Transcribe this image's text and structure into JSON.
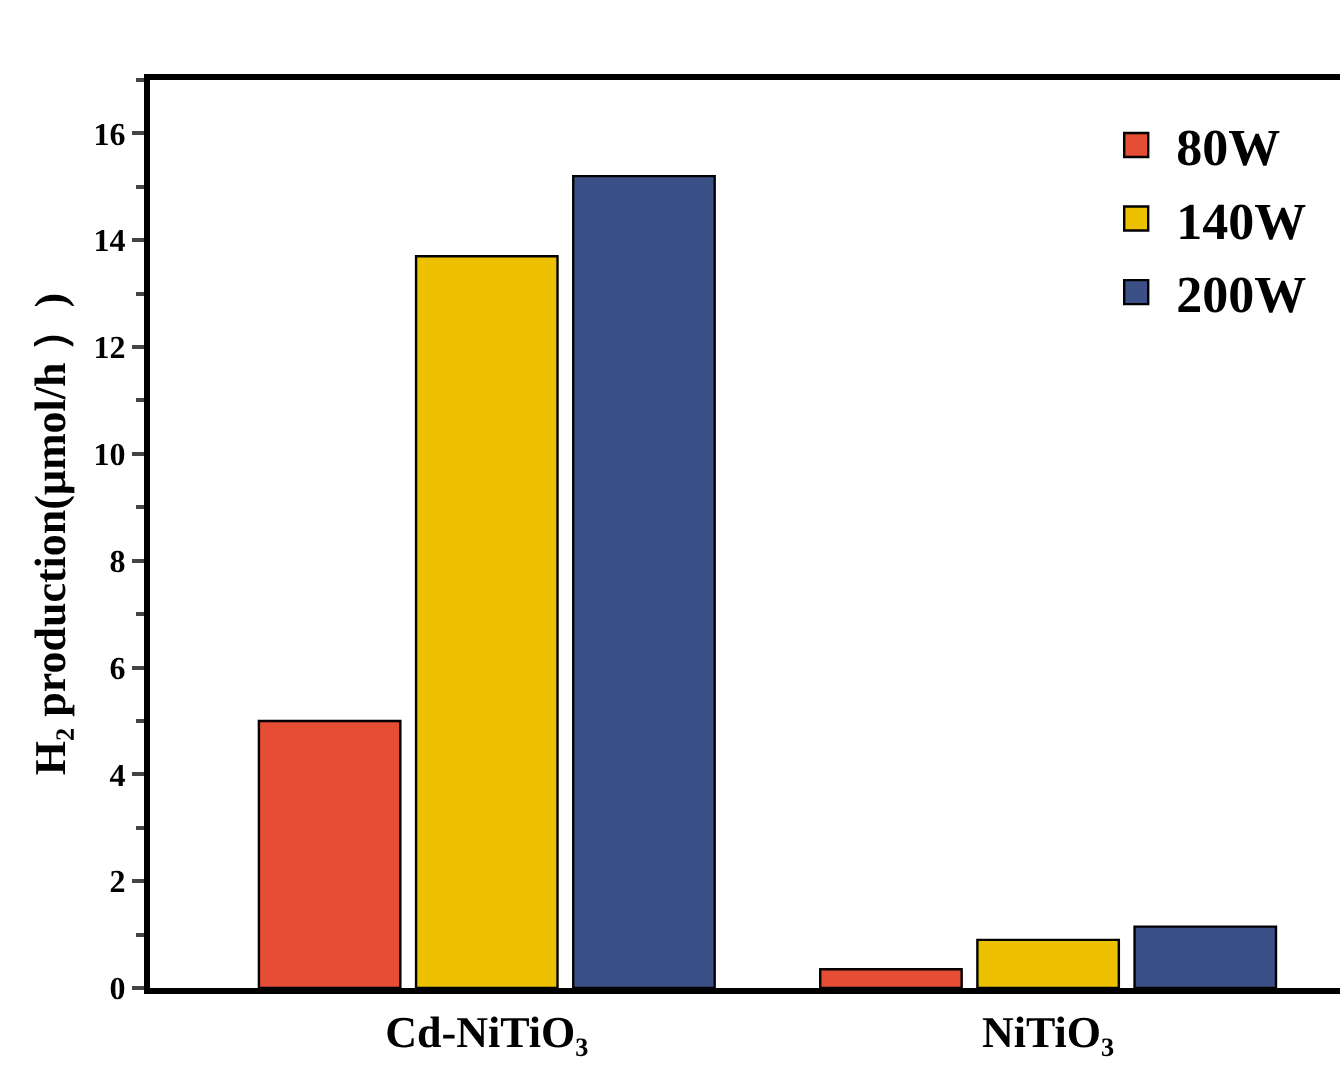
{
  "chart_data": {
    "type": "bar",
    "ylabel": "H₂ production(μmol/h ）)",
    "categories": [
      "Cd-NiTiO₃",
      "NiTiO₃"
    ],
    "series": [
      {
        "name": "80W",
        "color": "#e64d35",
        "values": [
          5.0,
          0.35
        ]
      },
      {
        "name": "140W",
        "color": "#edc000",
        "values": [
          13.7,
          0.9
        ]
      },
      {
        "name": "200W",
        "color": "#3a5087",
        "values": [
          15.2,
          1.15
        ]
      }
    ],
    "ylim": [
      0,
      17
    ],
    "yticks": [
      0,
      2,
      4,
      6,
      8,
      10,
      12,
      14,
      16
    ],
    "grid": false,
    "legend": "top right"
  }
}
